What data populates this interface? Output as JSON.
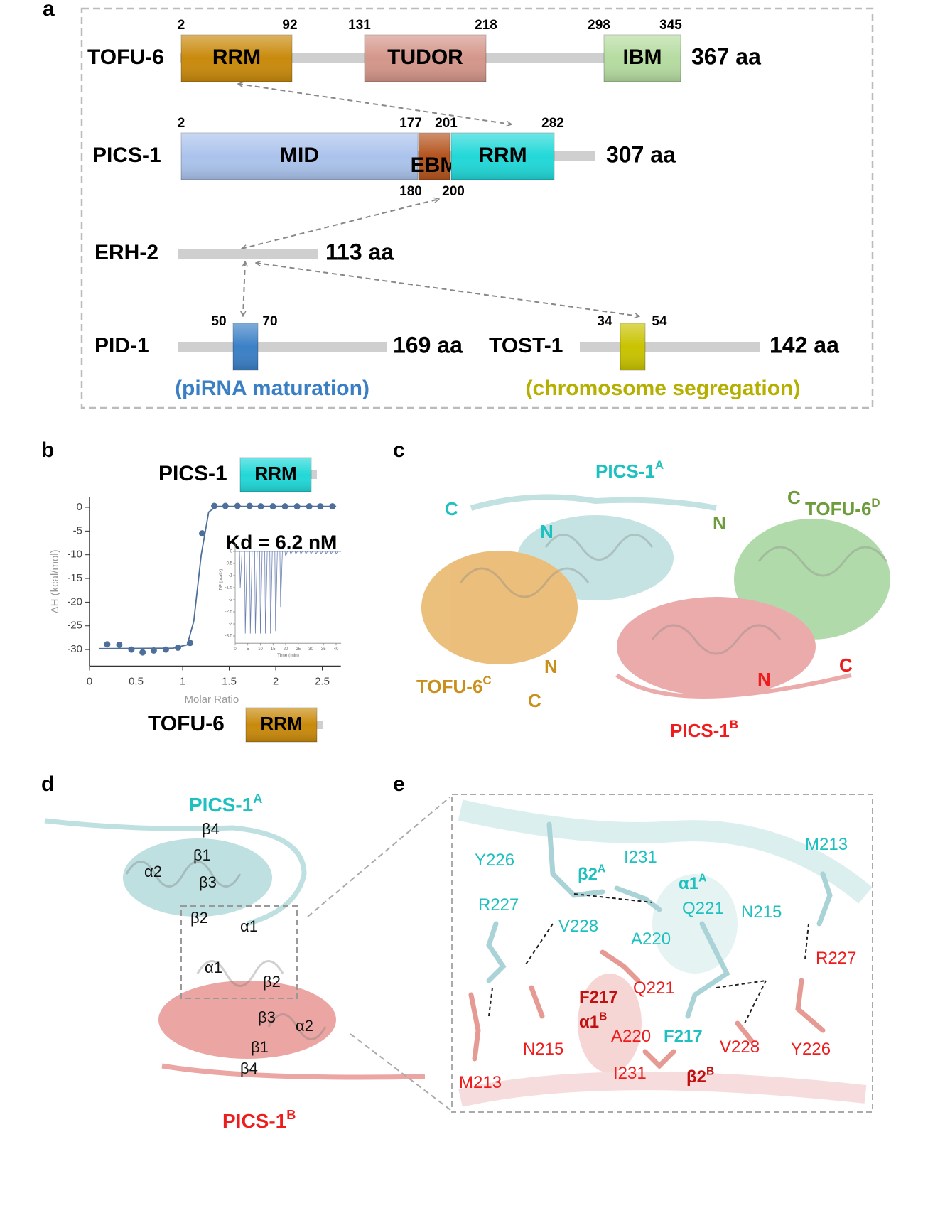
{
  "panel_a": {
    "label": "a",
    "proteins": [
      {
        "name": "TOFU-6",
        "length": "367 aa",
        "domains": [
          {
            "name": "RRM",
            "start": 2,
            "end": 92
          },
          {
            "name": "TUDOR",
            "start": 131,
            "end": 218
          },
          {
            "name": "IBM",
            "start": 298,
            "end": 345
          }
        ]
      },
      {
        "name": "PICS-1",
        "length": "307 aa",
        "domains": [
          {
            "name": "MID",
            "start": 2,
            "end": 177
          },
          {
            "name": "EBM",
            "start": 180,
            "end": 200
          },
          {
            "name": "RRM",
            "start": 201,
            "end": 282
          }
        ]
      },
      {
        "name": "ERH-2",
        "length": "113 aa",
        "domains": []
      },
      {
        "name": "PID-1",
        "length": "169 aa",
        "domains": [
          {
            "start": 50,
            "end": 70
          }
        ],
        "function": "(piRNA maturation)"
      },
      {
        "name": "TOST-1",
        "length": "142 aa",
        "domains": [
          {
            "start": 34,
            "end": 54
          }
        ],
        "function": "(chromosome segregation)"
      }
    ]
  },
  "panel_b": {
    "label": "b",
    "top_construct": {
      "protein": "PICS-1",
      "domain": "RRM"
    },
    "bottom_construct": {
      "protein": "TOFU-6",
      "domain": "RRM"
    },
    "annotation": "Kd = 6.2 nM",
    "chart": {
      "type": "scatter",
      "x_label": "Molar Ratio",
      "y_label": "ΔH (kcal/mol)",
      "xlim": [
        0,
        2.7
      ],
      "ylim": [
        -33.5,
        2.2
      ],
      "xticks": [
        0,
        0.5,
        1,
        1.5,
        2,
        2.5
      ],
      "yticks": [
        0,
        -5,
        -10,
        -15,
        -20,
        -25,
        -30
      ],
      "points": {
        "x": [
          0.19,
          0.32,
          0.45,
          0.57,
          0.69,
          0.82,
          0.95,
          1.08,
          1.21,
          1.34,
          1.46,
          1.59,
          1.72,
          1.84,
          1.97,
          2.1,
          2.23,
          2.36,
          2.48,
          2.61
        ],
        "y": [
          -28.9,
          -29,
          -30,
          -30.6,
          -30.2,
          -30,
          -29.6,
          -28.6,
          -5.5,
          0.3,
          0.3,
          0.3,
          0.3,
          0.2,
          0.2,
          0.2,
          0.2,
          0.2,
          0.2,
          0.2
        ]
      },
      "fit": {
        "x": [
          0.1,
          0.9,
          1.05,
          1.12,
          1.2,
          1.28,
          1.36,
          2.65
        ],
        "y": [
          -29.8,
          -29.7,
          -29,
          -24,
          -10,
          -1,
          0.2,
          0.2
        ]
      },
      "inset": {
        "x_label": "Time (min)",
        "y_label": "DP (μcal/s)",
        "xlim": [
          0,
          42
        ],
        "ylim": [
          -3.8,
          0.3
        ],
        "xticks": [
          0,
          5,
          10,
          15,
          20,
          25,
          30,
          35,
          40
        ],
        "yticks": [
          0,
          -0.5,
          -1,
          -1.5,
          -2,
          -2.5,
          -3,
          -3.5
        ],
        "injections": {
          "time": [
            2,
            4,
            6,
            8,
            10,
            12,
            14,
            16,
            18,
            20,
            22,
            24,
            26,
            28,
            30,
            32,
            34,
            36,
            38,
            40
          ],
          "dp": [
            -1.5,
            -3.4,
            -3.4,
            -3.4,
            -3.4,
            -3.4,
            -3.4,
            -3.3,
            -2.3,
            -0.2,
            -0.1,
            -0.1,
            -0.1,
            -0.1,
            -0.1,
            -0.1,
            -0.1,
            -0.1,
            -0.1,
            -0.1
          ]
        }
      }
    }
  },
  "panel_c": {
    "label": "c",
    "labels": [
      {
        "text": "PICS-1",
        "sup": "A"
      },
      {
        "text": "C"
      },
      {
        "text": "N"
      },
      {
        "text": "N"
      },
      {
        "text": "C"
      },
      {
        "text": "TOFU-6",
        "sup": "D"
      },
      {
        "text": "TOFU-6",
        "sup": "C"
      },
      {
        "text": "N"
      },
      {
        "text": "C"
      },
      {
        "text": "N"
      },
      {
        "text": "C"
      },
      {
        "text": "PICS-1",
        "sup": "B"
      }
    ]
  },
  "panel_d": {
    "label": "d",
    "labels": [
      {
        "text": "PICS-1",
        "sup": "A"
      },
      {
        "text": "β4"
      },
      {
        "text": "β1"
      },
      {
        "text": "α2"
      },
      {
        "text": "β3"
      },
      {
        "text": "β2"
      },
      {
        "text": "α1"
      },
      {
        "text": "α1"
      },
      {
        "text": "β2"
      },
      {
        "text": "β3"
      },
      {
        "text": "α2"
      },
      {
        "text": "β1"
      },
      {
        "text": "β4"
      },
      {
        "text": "PICS-1",
        "sup": "B"
      }
    ]
  },
  "panel_e": {
    "label": "e",
    "labels": [
      {
        "text": "Y226"
      },
      {
        "text": "I231"
      },
      {
        "text": "M213"
      },
      {
        "text": "R227"
      },
      {
        "text": "V228"
      },
      {
        "text": "A220"
      },
      {
        "text": "Q221"
      },
      {
        "text": "N215"
      },
      {
        "text": "β2",
        "sup": "A"
      },
      {
        "text": "α1",
        "sup": "A"
      },
      {
        "text": "F217"
      },
      {
        "text": "R227"
      },
      {
        "text": "Q221"
      },
      {
        "text": "N215"
      },
      {
        "text": "A220"
      },
      {
        "text": "V228"
      },
      {
        "text": "Y226"
      },
      {
        "text": "M213"
      },
      {
        "text": "I231"
      },
      {
        "text": "F217"
      },
      {
        "text": "α1",
        "sup": "B"
      },
      {
        "text": "β2",
        "sup": "B"
      }
    ]
  }
}
